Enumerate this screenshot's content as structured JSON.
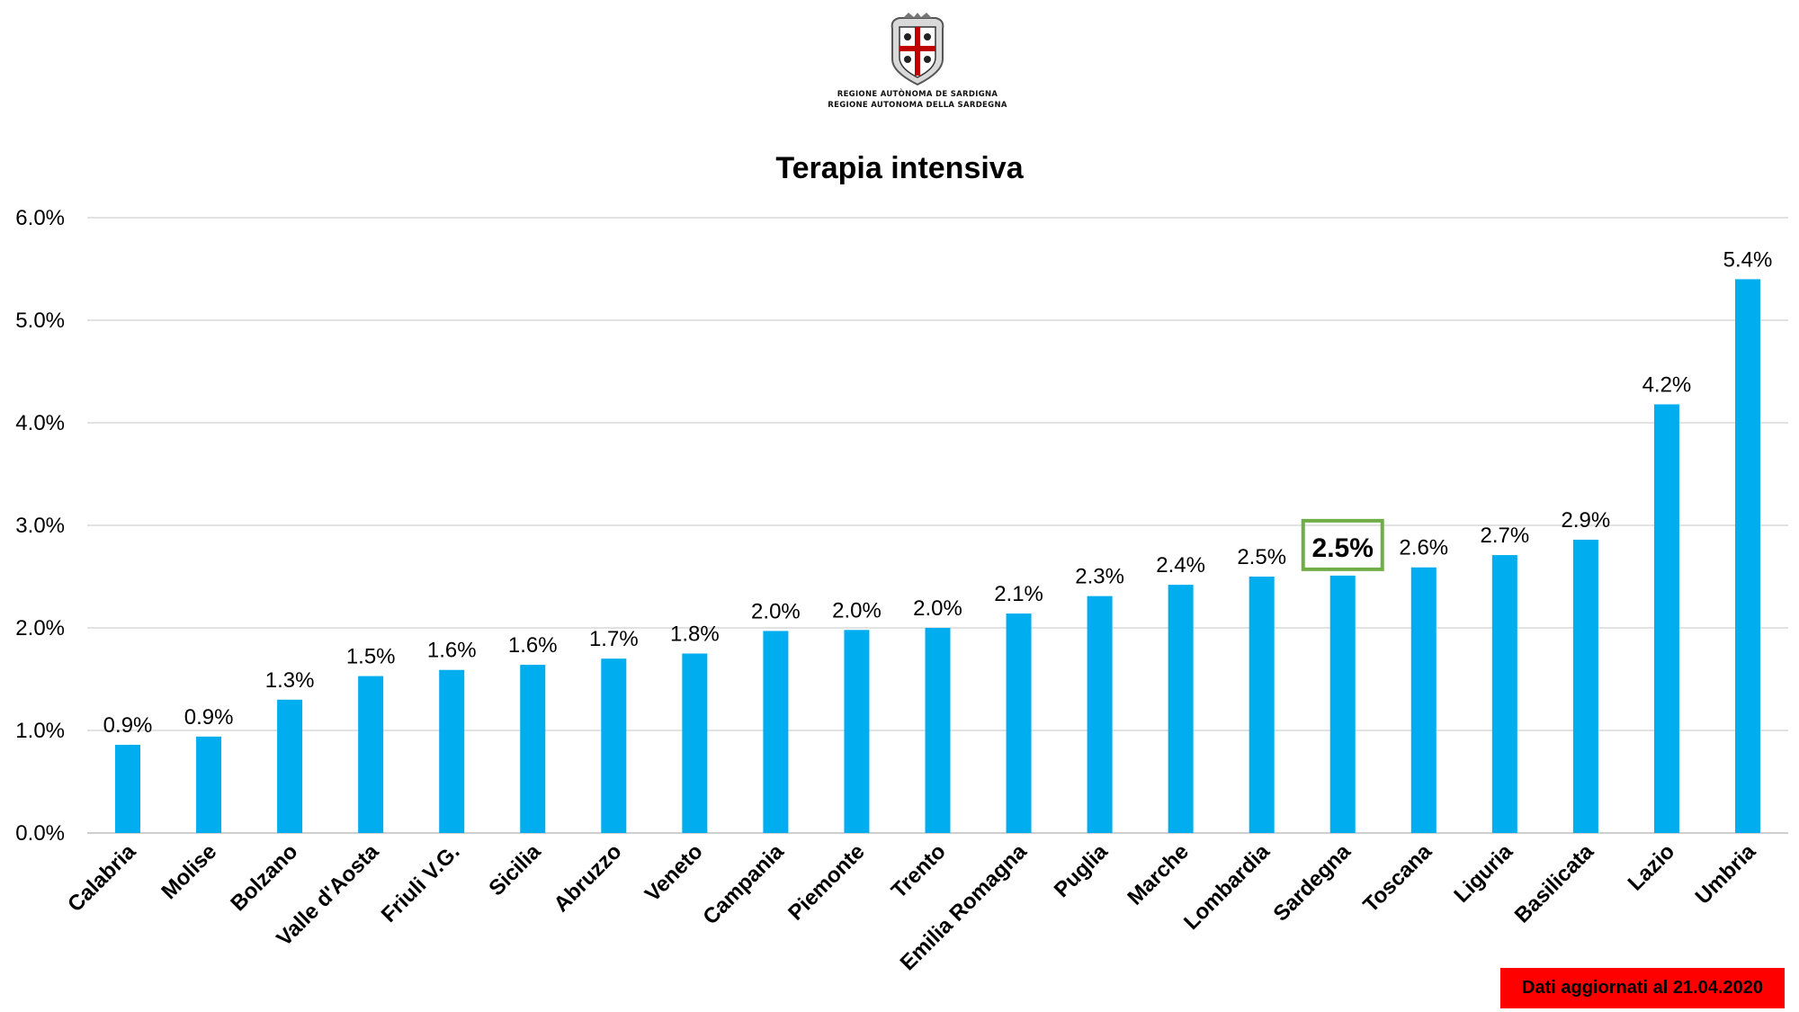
{
  "header": {
    "org_line1": "REGIONE AUTÒNOMA DE SARDIGNA",
    "org_line2": "REGIONE AUTONOMA DELLA SARDEGNA",
    "emblem_icon": "sardinia-coat-of-arms-icon"
  },
  "footer": {
    "update_note": "Dati aggiornati al 21.04.2020",
    "badge_color": "#ff0000"
  },
  "colors": {
    "bar": "#00adef",
    "highlight_box": "#70ad47"
  },
  "chart_data": {
    "type": "bar",
    "title": "Terapia intensiva",
    "xlabel": "",
    "ylabel": "",
    "ylim": [
      0,
      6
    ],
    "yticks": [
      "0.0%",
      "1.0%",
      "2.0%",
      "3.0%",
      "4.0%",
      "5.0%",
      "6.0%"
    ],
    "grid": true,
    "highlight_category": "Sardegna",
    "categories": [
      "Calabria",
      "Molise",
      "Bolzano",
      "Valle d'Aosta",
      "Friuli V.G.",
      "Sicilia",
      "Abruzzo",
      "Veneto",
      "Campania",
      "Piemonte",
      "Trento",
      "Emilia Romagna",
      "Puglia",
      "Marche",
      "Lombardia",
      "Sardegna",
      "Toscana",
      "Liguria",
      "Basilicata",
      "Lazio",
      "Umbria"
    ],
    "values": [
      0.86,
      0.94,
      1.3,
      1.53,
      1.59,
      1.64,
      1.7,
      1.75,
      1.97,
      1.98,
      2.0,
      2.14,
      2.31,
      2.42,
      2.5,
      2.51,
      2.59,
      2.71,
      2.86,
      4.18,
      5.4
    ],
    "labels": [
      "0.9%",
      "0.9%",
      "1.3%",
      "1.5%",
      "1.6%",
      "1.6%",
      "1.7%",
      "1.8%",
      "2.0%",
      "2.0%",
      "2.0%",
      "2.1%",
      "2.3%",
      "2.4%",
      "2.5%",
      "2.5%",
      "2.6%",
      "2.7%",
      "2.9%",
      "4.2%",
      "5.4%"
    ]
  }
}
